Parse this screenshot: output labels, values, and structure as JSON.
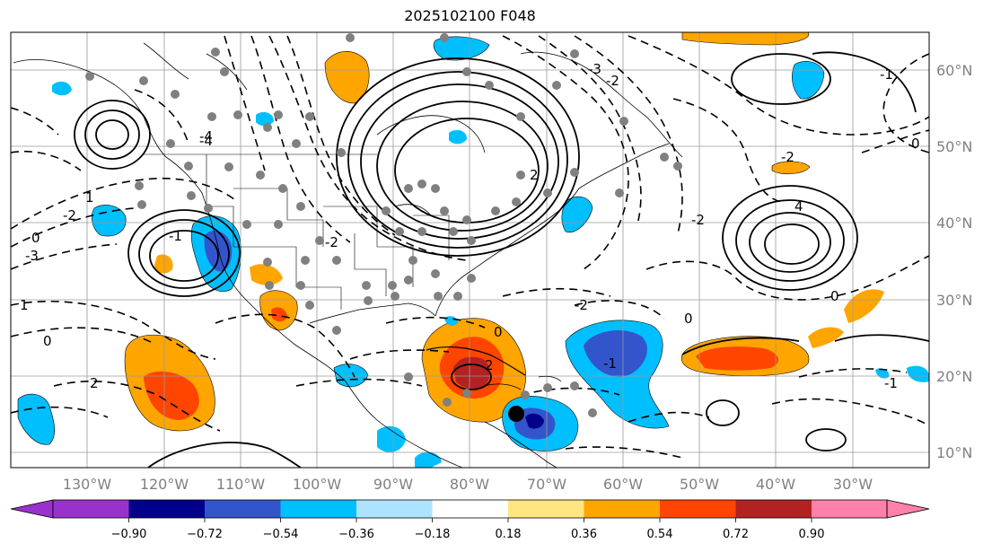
{
  "title": "2025102100 F048",
  "map": {
    "lon_labels": [
      "130°W",
      "120°W",
      "110°W",
      "100°W",
      "90°W",
      "80°W",
      "70°W",
      "60°W",
      "50°W",
      "40°W",
      "30°W"
    ],
    "lat_labels": [
      "60°N",
      "50°N",
      "40°N",
      "30°N",
      "20°N",
      "10°N"
    ],
    "contour_labels": [
      "0",
      "0",
      "1",
      "1",
      "-2",
      "-3",
      "-4",
      "-1",
      "4",
      "-2",
      "2",
      "-1",
      "0",
      "-2",
      "-1",
      "-2",
      "-2",
      "2",
      "0",
      "0",
      "-1",
      "-3",
      "-4",
      "0",
      "-2",
      "2"
    ]
  },
  "colorbar": {
    "ticks": [
      "−0.90",
      "−0.72",
      "−0.54",
      "−0.36",
      "−0.18",
      "0.18",
      "0.36",
      "0.54",
      "0.72",
      "0.90"
    ],
    "colors": [
      "#9932cc",
      "#00008b",
      "#3355cc",
      "#00bfff",
      "#aee3ff",
      "#ffffff",
      "#ffe680",
      "#ffa500",
      "#ff4500",
      "#b22222",
      "#ff80aa",
      "#ff80aa"
    ]
  }
}
